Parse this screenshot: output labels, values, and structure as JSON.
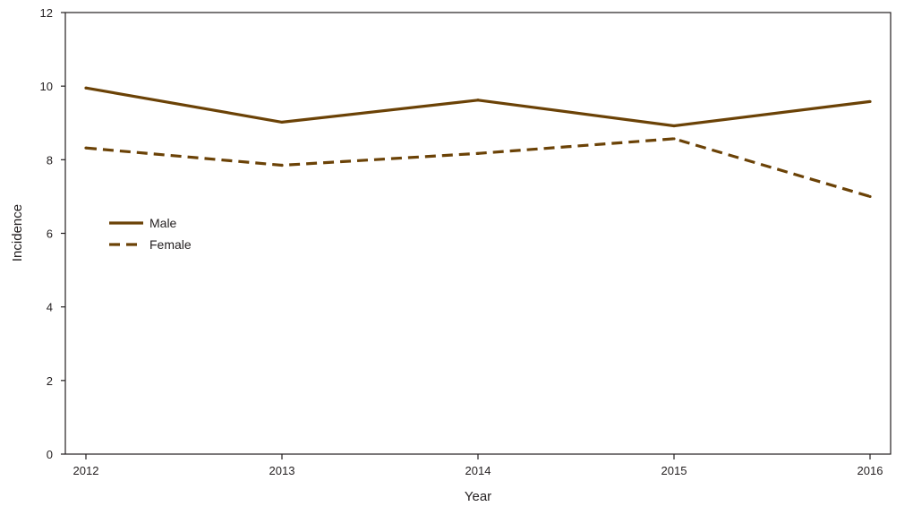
{
  "colors": {
    "series": "#6b4206",
    "axis": "#231f20",
    "background": "#ffffff"
  },
  "chart_data": {
    "type": "line",
    "title": "",
    "xlabel": "Year",
    "ylabel": "Incidence",
    "x": [
      "2012",
      "2013",
      "2014",
      "2015",
      "2016"
    ],
    "ylim": [
      0,
      12
    ],
    "yticks": [
      0,
      2,
      4,
      6,
      8,
      10,
      12
    ],
    "grid": false,
    "legend_position": "left-center",
    "series": [
      {
        "name": "Male",
        "line_style": "solid",
        "values": [
          9.95,
          9.02,
          9.62,
          8.92,
          9.58
        ]
      },
      {
        "name": "Female",
        "line_style": "dashed",
        "values": [
          8.32,
          7.85,
          8.17,
          8.57,
          7.0
        ]
      }
    ]
  }
}
